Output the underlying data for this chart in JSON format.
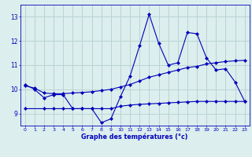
{
  "xlabel": "Graphe des températures (°c)",
  "bg_color": "#dceeed",
  "grid_color": "#b8d4d4",
  "line_color": "#0000bb",
  "xlim": [
    -0.5,
    23.5
  ],
  "ylim": [
    8.5,
    13.5
  ],
  "yticks": [
    9,
    10,
    11,
    12,
    13
  ],
  "xticks": [
    0,
    1,
    2,
    3,
    4,
    5,
    6,
    7,
    8,
    9,
    10,
    11,
    12,
    13,
    14,
    15,
    16,
    17,
    18,
    19,
    20,
    21,
    22,
    23
  ],
  "line1_x": [
    0,
    1,
    2,
    3,
    4,
    5,
    6,
    7,
    8,
    9,
    10,
    11,
    12,
    13,
    14,
    15,
    16,
    17,
    18,
    19,
    20,
    21,
    22,
    23
  ],
  "line1_y": [
    10.2,
    10.0,
    9.65,
    9.78,
    9.78,
    9.2,
    9.2,
    9.2,
    8.62,
    8.78,
    9.7,
    10.55,
    11.8,
    13.1,
    11.9,
    11.0,
    11.1,
    12.35,
    12.3,
    11.3,
    10.8,
    10.85,
    10.3,
    9.5
  ],
  "line2_x": [
    0,
    2,
    3,
    4,
    5,
    6,
    7,
    8,
    9,
    10,
    11,
    12,
    13,
    14,
    15,
    16,
    17,
    18,
    19,
    20,
    21,
    22,
    23
  ],
  "line2_y": [
    9.2,
    9.2,
    9.2,
    9.2,
    9.2,
    9.2,
    9.2,
    9.2,
    9.2,
    9.3,
    9.35,
    9.38,
    9.4,
    9.42,
    9.44,
    9.46,
    9.48,
    9.5,
    9.5,
    9.5,
    9.5,
    9.5,
    9.5
  ],
  "line3_x": [
    0,
    1,
    2,
    3,
    4,
    5,
    6,
    7,
    8,
    9,
    10,
    11,
    12,
    13,
    14,
    15,
    16,
    17,
    18,
    19,
    20,
    21,
    22,
    23
  ],
  "line3_y": [
    10.15,
    10.05,
    9.85,
    9.82,
    9.82,
    9.85,
    9.87,
    9.9,
    9.95,
    10.0,
    10.1,
    10.2,
    10.35,
    10.5,
    10.6,
    10.7,
    10.8,
    10.9,
    10.95,
    11.05,
    11.1,
    11.15,
    11.18,
    11.2
  ]
}
